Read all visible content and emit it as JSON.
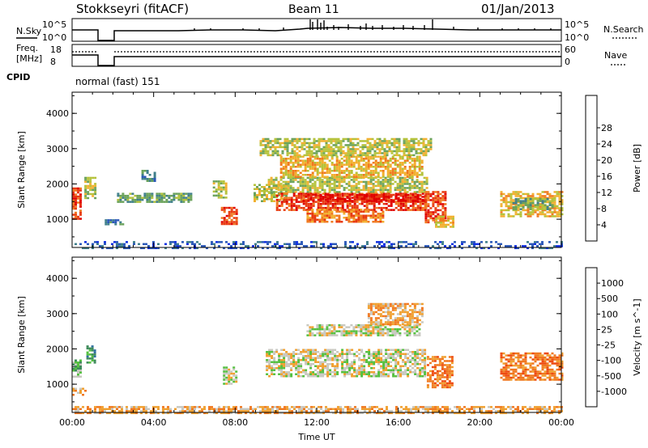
{
  "header": {
    "station": "Stokkseyri (fitACF)",
    "beam": "Beam 11",
    "date": "01/Jan/2013"
  },
  "params": {
    "nsky_label": "N.Sky",
    "nsky_ticks": [
      "10^5",
      "10^0"
    ],
    "nsearch_label": "N.Search",
    "nsearch_ticks": [
      "10^5",
      "10^0"
    ],
    "freq_label": "Freq.",
    "freq_unit": "[MHz]",
    "freq_ticks": [
      "18",
      "8"
    ],
    "nave_label": "Nave",
    "nave_ticks": [
      "60",
      "0"
    ],
    "cpid_label": "CPID",
    "cpid_value": "normal (fast) 151"
  },
  "chart_data": [
    {
      "type": "heatmap",
      "name": "power-panel",
      "ylabel": "Slant Range [km]",
      "y_ticks": [
        "1000",
        "2000",
        "3000",
        "4000"
      ],
      "ylim": [
        200,
        4600
      ],
      "xlim": [
        0,
        24
      ],
      "colorbar": {
        "label": "Power [dB]",
        "ticks": [
          "4",
          "8",
          "12",
          "16",
          "20",
          "24",
          "28"
        ],
        "colors": [
          "#1030e0",
          "#2a57b8",
          "#3f7f8a",
          "#6aa25a",
          "#b5c23a",
          "#f2b030",
          "#f07a20",
          "#e83a10",
          "#e00000"
        ]
      },
      "regions": [
        {
          "t0": 0.0,
          "t1": 0.4,
          "r0": 1000,
          "r1": 1900,
          "level": 7
        },
        {
          "t0": 0.6,
          "t1": 1.1,
          "r0": 1600,
          "r1": 2200,
          "level": 4
        },
        {
          "t0": 2.2,
          "t1": 5.8,
          "r0": 1500,
          "r1": 1750,
          "level": 3
        },
        {
          "t0": 3.4,
          "t1": 4.0,
          "r0": 2100,
          "r1": 2400,
          "level": 2
        },
        {
          "t0": 1.6,
          "t1": 2.6,
          "r0": 850,
          "r1": 1000,
          "level": 2
        },
        {
          "t0": 6.9,
          "t1": 7.6,
          "r0": 1600,
          "r1": 2100,
          "level": 4
        },
        {
          "t0": 7.3,
          "t1": 8.1,
          "r0": 850,
          "r1": 1350,
          "level": 7
        },
        {
          "t0": 8.9,
          "t1": 10.5,
          "r0": 1500,
          "r1": 2000,
          "level": 4
        },
        {
          "t0": 9.6,
          "t1": 17.4,
          "r0": 1750,
          "r1": 2200,
          "level": 4
        },
        {
          "t0": 10.0,
          "t1": 17.3,
          "r0": 1250,
          "r1": 1750,
          "level": 7
        },
        {
          "t0": 11.3,
          "t1": 17.3,
          "r0": 1500,
          "r1": 1720,
          "level": 8
        },
        {
          "t0": 11.5,
          "t1": 15.2,
          "r0": 900,
          "r1": 1300,
          "level": 6
        },
        {
          "t0": 10.2,
          "t1": 17.2,
          "r0": 2200,
          "r1": 2800,
          "level": 5
        },
        {
          "t0": 9.2,
          "t1": 17.6,
          "r0": 2800,
          "r1": 3300,
          "level": 4
        },
        {
          "t0": 17.3,
          "t1": 18.3,
          "r0": 900,
          "r1": 1800,
          "level": 7
        },
        {
          "t0": 17.8,
          "t1": 18.7,
          "r0": 800,
          "r1": 1100,
          "level": 5
        },
        {
          "t0": 21.0,
          "t1": 24.0,
          "r0": 1100,
          "r1": 1800,
          "level": 5
        },
        {
          "t0": 21.6,
          "t1": 23.6,
          "r0": 1300,
          "r1": 1600,
          "level": 3
        },
        {
          "t0": 0.0,
          "t1": 24.0,
          "r0": 200,
          "r1": 380,
          "level": 1
        }
      ]
    },
    {
      "type": "heatmap",
      "name": "velocity-panel",
      "ylabel": "Slant Range [km]",
      "y_ticks": [
        "1000",
        "2000",
        "3000",
        "4000"
      ],
      "ylim": [
        200,
        4600
      ],
      "xlim": [
        0,
        24
      ],
      "x_ticks": [
        "00:00",
        "04:00",
        "08:00",
        "12:00",
        "16:00",
        "20:00",
        "00:00"
      ],
      "xlabel": "Time UT",
      "colorbar": {
        "label": "Velocity [m s^-1]",
        "ticks": [
          "1000",
          "500",
          "100",
          "25",
          "-25",
          "-100",
          "-500",
          "-1000"
        ],
        "colors": [
          "#1a3fb0",
          "#2f6fa0",
          "#3d8a5a",
          "#55c040",
          "#c8c8c0",
          "#f0a030",
          "#f07820",
          "#ee4a10",
          "#e00000"
        ]
      },
      "regions": [
        {
          "t0": 0.0,
          "t1": 0.4,
          "r0": 1200,
          "r1": 1700,
          "level": 3
        },
        {
          "t0": 0.7,
          "t1": 1.1,
          "r0": 1600,
          "r1": 2100,
          "level": 2
        },
        {
          "t0": 7.4,
          "t1": 8.1,
          "r0": 1000,
          "r1": 1500,
          "level": 4
        },
        {
          "t0": 9.5,
          "t1": 17.3,
          "r0": 1250,
          "r1": 2000,
          "level": 4
        },
        {
          "t0": 11.5,
          "t1": 17.0,
          "r0": 2400,
          "r1": 2700,
          "level": 4
        },
        {
          "t0": 14.5,
          "t1": 17.2,
          "r0": 2700,
          "r1": 3300,
          "level": 5
        },
        {
          "t0": 17.4,
          "t1": 18.6,
          "r0": 900,
          "r1": 1800,
          "level": 6
        },
        {
          "t0": 21.0,
          "t1": 24.0,
          "r0": 1100,
          "r1": 1900,
          "level": 6
        },
        {
          "t0": 0.0,
          "t1": 24.0,
          "r0": 200,
          "r1": 380,
          "level": 5
        },
        {
          "t0": 0.0,
          "t1": 0.7,
          "r0": 700,
          "r1": 900,
          "level": 5
        }
      ]
    }
  ]
}
